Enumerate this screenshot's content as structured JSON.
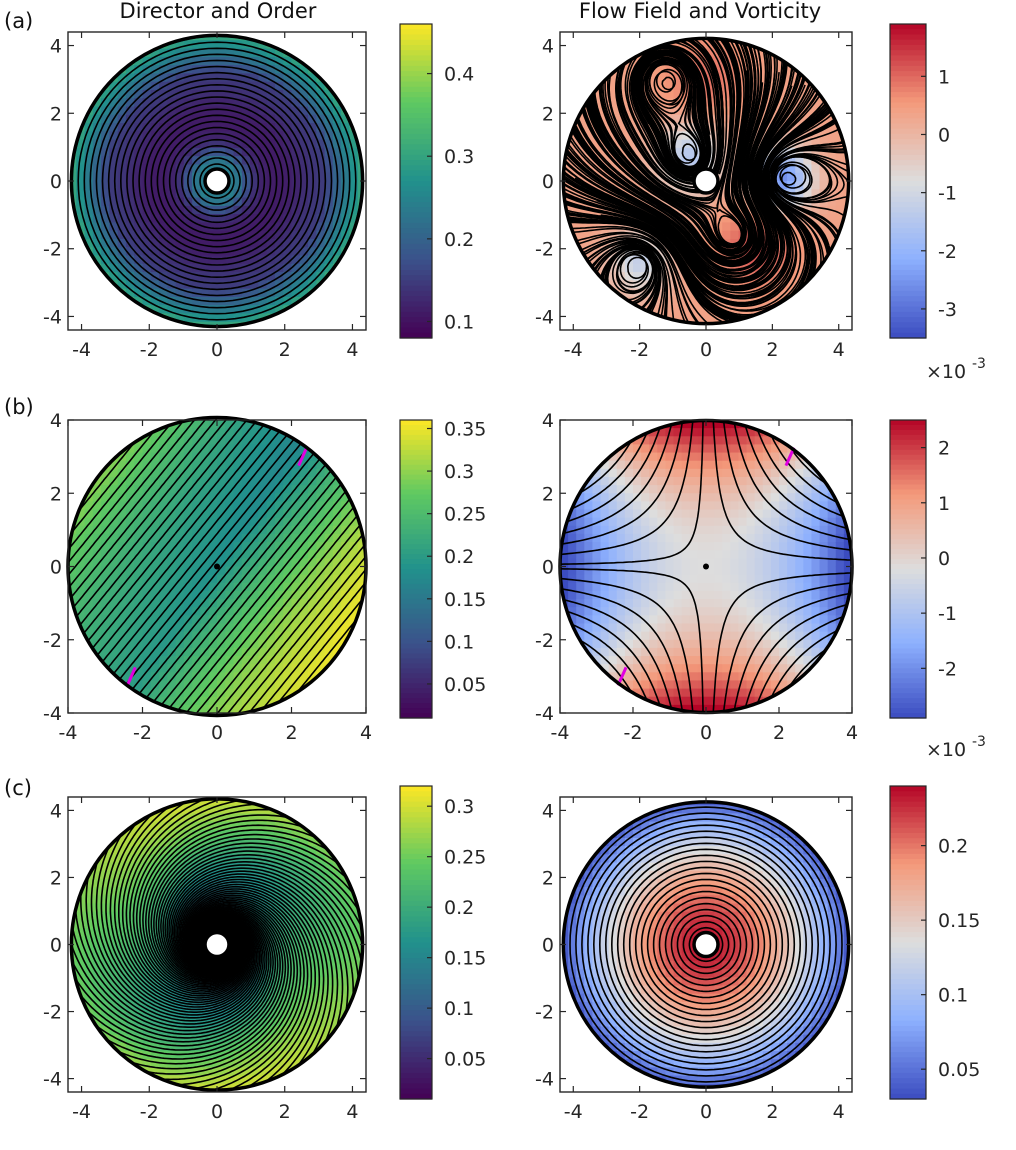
{
  "titles": {
    "left": "Director and Order",
    "right": "Flow Field and Vorticity"
  },
  "scale_exponent_text": "×10",
  "scale_exponent_power": "-3",
  "chart_data": [
    {
      "panel": "(a)",
      "column": "left",
      "type": "heatmap",
      "description_kind": "director streamlines over order magnitude",
      "xlim": [
        -4.4,
        4.4
      ],
      "ylim": [
        -4.4,
        4.4
      ],
      "xticks": [
        "-4",
        "-2",
        "0",
        "2",
        "4"
      ],
      "yticks": [
        "4",
        "2",
        "0",
        "-2",
        "-4"
      ],
      "pattern": "concentric",
      "inner_hole": true,
      "colormap": "viridis",
      "colorbar": {
        "min": 0.08,
        "max": 0.46,
        "ticks": [
          "0.1",
          "0.2",
          "0.3",
          "0.4"
        ],
        "tick_values": [
          0.1,
          0.2,
          0.3,
          0.4
        ]
      }
    },
    {
      "panel": "(a)",
      "column": "right",
      "type": "heatmap",
      "description_kind": "flow streamlines over vorticity",
      "xlim": [
        -4.4,
        4.4
      ],
      "ylim": [
        -4.4,
        4.4
      ],
      "xticks": [
        "-4",
        "-2",
        "0",
        "2",
        "4"
      ],
      "yticks": [
        "4",
        "2",
        "0",
        "-2",
        "-4"
      ],
      "pattern": "vortices",
      "inner_hole": true,
      "colormap": "coolwarm",
      "colorbar": {
        "min": -3.5,
        "max": 1.9,
        "ticks": [
          "1",
          "0",
          "-1",
          "-2",
          "-3"
        ],
        "tick_values": [
          1,
          0,
          -1,
          -2,
          -3
        ],
        "exponent": "-3"
      }
    },
    {
      "panel": "(b)",
      "column": "left",
      "type": "heatmap",
      "description_kind": "director streamlines over order magnitude",
      "xlim": [
        -4,
        4
      ],
      "ylim": [
        -4,
        4
      ],
      "xticks": [
        "-4",
        "-2",
        "0",
        "2",
        "4"
      ],
      "yticks": [
        "4",
        "2",
        "0",
        "-2",
        "-4"
      ],
      "pattern": "diagonal",
      "inner_hole": false,
      "defects": [
        [
          2.3,
          3.0
        ],
        [
          -2.3,
          -3.0
        ]
      ],
      "colormap": "viridis",
      "colorbar": {
        "min": 0.01,
        "max": 0.36,
        "ticks": [
          "0.35",
          "0.3",
          "0.25",
          "0.2",
          "0.15",
          "0.1",
          "0.05"
        ],
        "tick_values": [
          0.35,
          0.3,
          0.25,
          0.2,
          0.15,
          0.1,
          0.05
        ]
      }
    },
    {
      "panel": "(b)",
      "column": "right",
      "type": "heatmap",
      "description_kind": "flow streamlines over vorticity",
      "xlim": [
        -4,
        4
      ],
      "ylim": [
        -4,
        4
      ],
      "xticks": [
        "-4",
        "-2",
        "0",
        "2",
        "4"
      ],
      "yticks": [
        "4",
        "2",
        "0",
        "-2",
        "-4"
      ],
      "pattern": "saddle",
      "inner_hole": false,
      "defects": [
        [
          2.3,
          3.0
        ],
        [
          -2.3,
          -3.0
        ]
      ],
      "colormap": "coolwarm",
      "colorbar": {
        "min": -2.9,
        "max": 2.5,
        "ticks": [
          "2",
          "1",
          "0",
          "-1",
          "-2"
        ],
        "tick_values": [
          2,
          1,
          0,
          -1,
          -2
        ],
        "exponent": "-3"
      }
    },
    {
      "panel": "(c)",
      "column": "left",
      "type": "heatmap",
      "description_kind": "director streamlines over order magnitude",
      "xlim": [
        -4.4,
        4.4
      ],
      "ylim": [
        -4.4,
        4.4
      ],
      "xticks": [
        "-4",
        "-2",
        "0",
        "2",
        "4"
      ],
      "yticks": [
        "4",
        "2",
        "0",
        "-2",
        "-4"
      ],
      "pattern": "spiral",
      "inner_hole": true,
      "colormap": "viridis",
      "colorbar": {
        "min": 0.01,
        "max": 0.32,
        "ticks": [
          "0.3",
          "0.25",
          "0.2",
          "0.15",
          "0.1",
          "0.05"
        ],
        "tick_values": [
          0.3,
          0.25,
          0.2,
          0.15,
          0.1,
          0.05
        ]
      }
    },
    {
      "panel": "(c)",
      "column": "right",
      "type": "heatmap",
      "description_kind": "flow streamlines over vorticity",
      "xlim": [
        -4.4,
        4.4
      ],
      "ylim": [
        -4.4,
        4.4
      ],
      "xticks": [
        "-4",
        "-2",
        "0",
        "2",
        "4"
      ],
      "yticks": [
        "4",
        "2",
        "0",
        "-2",
        "-4"
      ],
      "pattern": "rotation",
      "inner_hole": true,
      "colormap": "coolwarm",
      "colorbar": {
        "min": 0.03,
        "max": 0.24,
        "ticks": [
          "0.2",
          "0.15",
          "0.1",
          "0.05"
        ],
        "tick_values": [
          0.2,
          0.15,
          0.1,
          0.05
        ]
      }
    }
  ]
}
